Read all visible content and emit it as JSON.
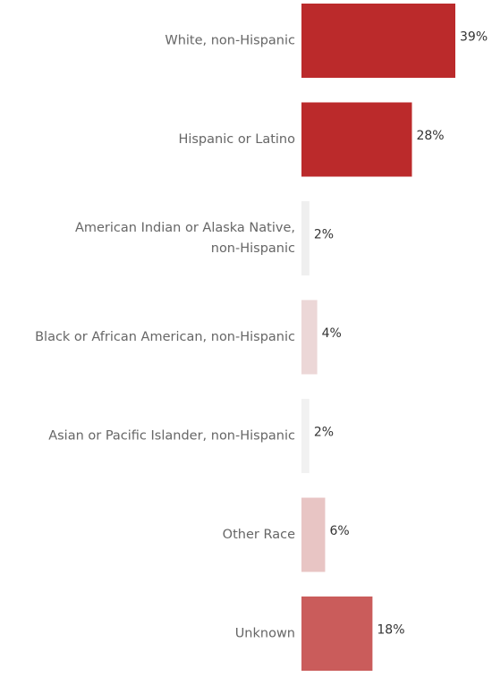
{
  "chart_data": {
    "type": "bar",
    "orientation": "horizontal",
    "categories": [
      [
        "White, non-Hispanic"
      ],
      [
        "Hispanic or Latino"
      ],
      [
        "American Indian or Alaska Native,",
        "non-Hispanic"
      ],
      [
        "Black or African American, non-Hispanic"
      ],
      [
        "Asian or Pacific Islander, non-Hispanic"
      ],
      [
        "Other Race"
      ],
      [
        "Unknown"
      ]
    ],
    "values": [
      39,
      28,
      2,
      4,
      2,
      6,
      18
    ],
    "value_labels": [
      "39%",
      "28%",
      "2%",
      "4%",
      "2%",
      "6%",
      "18%"
    ],
    "bar_colors": [
      "#bb2a2b",
      "#bb2a2b",
      "#efefef",
      "#ecd7d7",
      "#f1f1f1",
      "#e8c5c4",
      "#ca5c5b"
    ],
    "xlim": [
      0,
      39
    ],
    "title": "",
    "xlabel": "",
    "ylabel": "",
    "grid": false,
    "legend": "none"
  }
}
